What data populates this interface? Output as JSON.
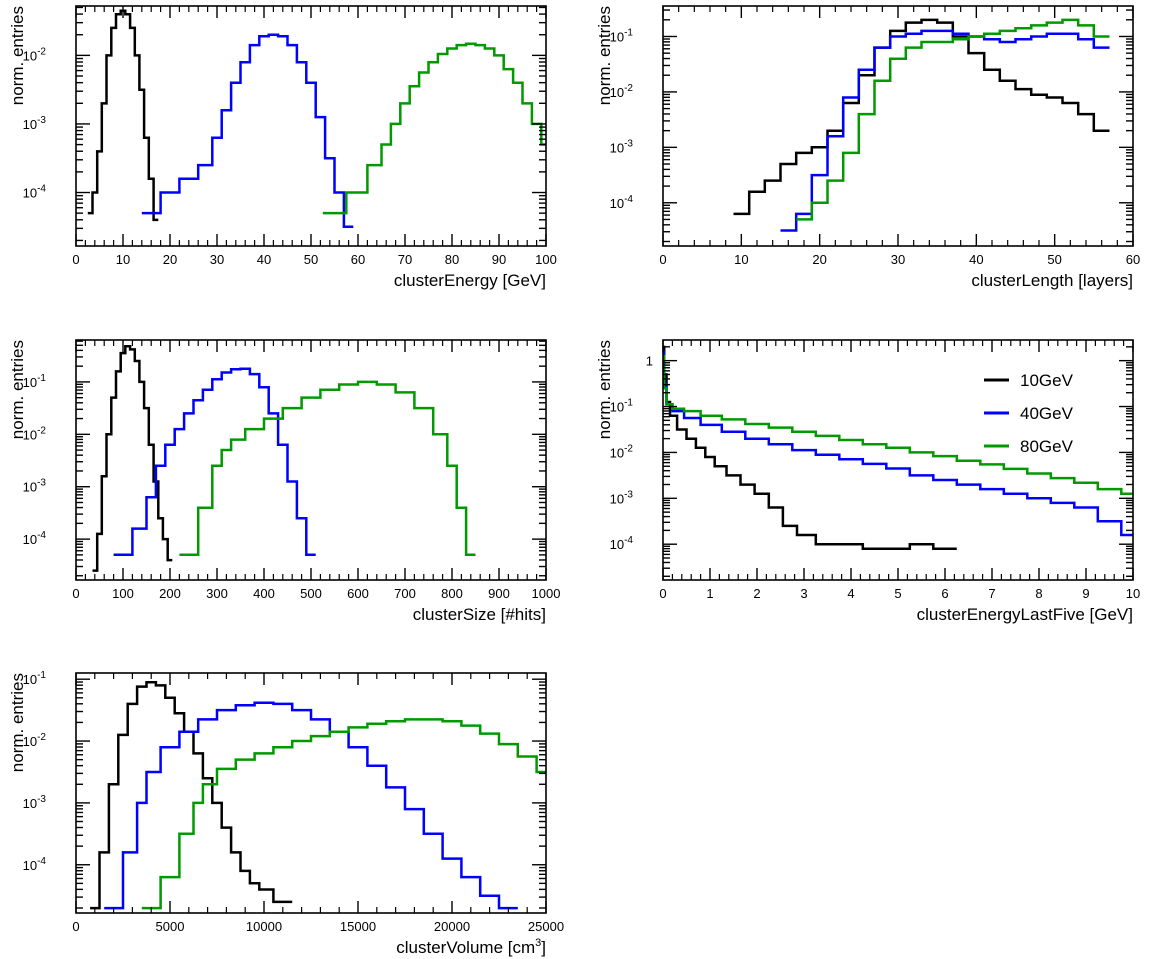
{
  "colors": {
    "10GeV": "#000000",
    "40GeV": "#0000ff",
    "80GeV": "#009900"
  },
  "chart_data": [
    {
      "id": "energy",
      "type": "line",
      "xlabel": "clusterEnergy [GeV]",
      "ylabel": "norm. entries",
      "xlim": [
        0,
        100
      ],
      "ylim_log10": [
        -4.78,
        -1.28
      ],
      "yscale": "log",
      "xticks": [
        "0",
        "10",
        "20",
        "30",
        "40",
        "50",
        "60",
        "70",
        "80",
        "90",
        "100"
      ],
      "yticks": [
        {
          "label": "10",
          "exp": "-4",
          "log": -4
        },
        {
          "label": "10",
          "exp": "-3",
          "log": -3
        },
        {
          "label": "10",
          "exp": "-2",
          "log": -2
        }
      ],
      "series": [
        {
          "key": "10GeV",
          "x": [
            3,
            4,
            5,
            6,
            7,
            8,
            9,
            10,
            11,
            12,
            13,
            14,
            15,
            16,
            17
          ],
          "log10y": [
            -4.3,
            -4.0,
            -3.4,
            -2.7,
            -2.0,
            -1.6,
            -1.4,
            -1.35,
            -1.4,
            -1.6,
            -2.0,
            -2.5,
            -3.2,
            -3.8,
            -4.4
          ]
        },
        {
          "key": "40GeV",
          "x": [
            16,
            20,
            24,
            28,
            30,
            32,
            34,
            36,
            38,
            40,
            42,
            44,
            46,
            48,
            50,
            52,
            54,
            56,
            58
          ],
          "log10y": [
            -4.3,
            -4.0,
            -3.8,
            -3.6,
            -3.2,
            -2.8,
            -2.4,
            -2.1,
            -1.85,
            -1.72,
            -1.7,
            -1.72,
            -1.85,
            -2.1,
            -2.4,
            -2.9,
            -3.5,
            -4.0,
            -4.5
          ]
        },
        {
          "key": "80GeV",
          "x": [
            55,
            60,
            64,
            66,
            68,
            70,
            72,
            74,
            76,
            78,
            80,
            82,
            84,
            86,
            88,
            90,
            92,
            94,
            96,
            98,
            100
          ],
          "log10y": [
            -4.3,
            -4.0,
            -3.6,
            -3.3,
            -3.0,
            -2.7,
            -2.45,
            -2.25,
            -2.1,
            -1.98,
            -1.9,
            -1.85,
            -1.83,
            -1.85,
            -1.9,
            -2.0,
            -2.2,
            -2.4,
            -2.7,
            -3.0,
            -3.3
          ]
        }
      ]
    },
    {
      "id": "length",
      "type": "line",
      "xlabel": "clusterLength [layers]",
      "ylabel": "norm. entries",
      "xlim": [
        0,
        60
      ],
      "ylim_log10": [
        -4.78,
        -0.45
      ],
      "yscale": "log",
      "xticks": [
        "0",
        "10",
        "20",
        "30",
        "40",
        "50",
        "60"
      ],
      "yticks": [
        {
          "label": "10",
          "exp": "-4",
          "log": -4
        },
        {
          "label": "10",
          "exp": "-3",
          "log": -3
        },
        {
          "label": "10",
          "exp": "-2",
          "log": -2
        },
        {
          "label": "10",
          "exp": "-1",
          "log": -1
        }
      ],
      "series": [
        {
          "key": "10GeV",
          "x": [
            10,
            12,
            14,
            16,
            18,
            20,
            22,
            24,
            26,
            28,
            30,
            32,
            34,
            36,
            38,
            40,
            42,
            44,
            46,
            48,
            50,
            52,
            54,
            56
          ],
          "log10y": [
            -4.2,
            -3.8,
            -3.6,
            -3.3,
            -3.1,
            -3.0,
            -2.7,
            -2.2,
            -1.7,
            -1.2,
            -0.9,
            -0.75,
            -0.7,
            -0.75,
            -1.0,
            -1.3,
            -1.6,
            -1.8,
            -1.95,
            -2.05,
            -2.1,
            -2.2,
            -2.4,
            -2.7
          ]
        },
        {
          "key": "40GeV",
          "x": [
            16,
            18,
            20,
            22,
            24,
            26,
            28,
            30,
            32,
            34,
            36,
            38,
            40,
            42,
            44,
            46,
            48,
            50,
            52,
            54,
            56
          ],
          "log10y": [
            -4.5,
            -4.2,
            -3.5,
            -2.8,
            -2.1,
            -1.6,
            -1.2,
            -1.0,
            -0.95,
            -0.9,
            -0.9,
            -0.95,
            -1.0,
            -1.05,
            -1.1,
            -1.05,
            -1.0,
            -0.95,
            -0.95,
            -1.05,
            -1.2
          ]
        },
        {
          "key": "80GeV",
          "x": [
            18,
            20,
            22,
            24,
            26,
            28,
            30,
            32,
            34,
            36,
            38,
            40,
            42,
            44,
            46,
            48,
            50,
            52,
            54,
            56
          ],
          "log10y": [
            -4.3,
            -4.0,
            -3.6,
            -3.1,
            -2.4,
            -1.8,
            -1.4,
            -1.2,
            -1.1,
            -1.1,
            -1.05,
            -1.0,
            -0.95,
            -0.9,
            -0.85,
            -0.8,
            -0.75,
            -0.7,
            -0.8,
            -1.0
          ]
        }
      ]
    },
    {
      "id": "size",
      "type": "line",
      "xlabel": "clusterSize [#hits]",
      "ylabel": "norm. entries",
      "xlim": [
        0,
        1000
      ],
      "ylim_log10": [
        -4.78,
        -0.2
      ],
      "yscale": "log",
      "xticks": [
        "0",
        "100",
        "200",
        "300",
        "400",
        "500",
        "600",
        "700",
        "800",
        "900",
        "1000"
      ],
      "yticks": [
        {
          "label": "10",
          "exp": "-4",
          "log": -4
        },
        {
          "label": "10",
          "exp": "-3",
          "log": -3
        },
        {
          "label": "10",
          "exp": "-2",
          "log": -2
        },
        {
          "label": "10",
          "exp": "-1",
          "log": -1
        }
      ],
      "series": [
        {
          "key": "10GeV",
          "x": [
            40,
            50,
            60,
            70,
            80,
            90,
            100,
            110,
            120,
            130,
            140,
            150,
            160,
            170,
            180,
            190,
            200
          ],
          "log10y": [
            -4.6,
            -3.9,
            -2.8,
            -2.0,
            -1.3,
            -0.8,
            -0.45,
            -0.32,
            -0.38,
            -0.6,
            -1.0,
            -1.5,
            -2.2,
            -2.9,
            -3.6,
            -4.0,
            -4.4
          ]
        },
        {
          "key": "40GeV",
          "x": [
            100,
            140,
            160,
            180,
            200,
            220,
            240,
            260,
            280,
            300,
            320,
            340,
            360,
            380,
            400,
            420,
            440,
            460,
            480,
            500
          ],
          "log10y": [
            -4.3,
            -3.8,
            -3.2,
            -2.6,
            -2.2,
            -1.9,
            -1.6,
            -1.35,
            -1.15,
            -0.95,
            -0.82,
            -0.76,
            -0.75,
            -0.85,
            -1.1,
            -1.6,
            -2.2,
            -2.9,
            -3.6,
            -4.3
          ]
        },
        {
          "key": "80GeV",
          "x": [
            240,
            280,
            300,
            320,
            340,
            380,
            420,
            460,
            500,
            540,
            580,
            620,
            660,
            700,
            740,
            780,
            800,
            820,
            840
          ],
          "log10y": [
            -4.3,
            -3.4,
            -2.6,
            -2.3,
            -2.1,
            -1.9,
            -1.7,
            -1.5,
            -1.3,
            -1.15,
            -1.05,
            -1.0,
            -1.05,
            -1.2,
            -1.5,
            -2.0,
            -2.6,
            -3.4,
            -4.3
          ]
        }
      ]
    },
    {
      "id": "lastfive",
      "type": "line",
      "xlabel": "clusterEnergyLastFive [GeV]",
      "ylabel": "norm. entries",
      "xlim": [
        0,
        10
      ],
      "ylim_log10": [
        -4.78,
        0.45
      ],
      "yscale": "log",
      "xticks": [
        "0",
        "1",
        "2",
        "3",
        "4",
        "5",
        "6",
        "7",
        "8",
        "9",
        "10"
      ],
      "yticks": [
        {
          "label": "10",
          "exp": "-4",
          "log": -4
        },
        {
          "label": "10",
          "exp": "-3",
          "log": -3
        },
        {
          "label": "10",
          "exp": "-2",
          "log": -2
        },
        {
          "label": "10",
          "exp": "-1",
          "log": -1
        },
        {
          "label": "1",
          "exp": "",
          "log": 0
        }
      ],
      "legend": {
        "position": "top-right",
        "entries": [
          "10GeV",
          "40GeV",
          "80GeV"
        ]
      },
      "series": [
        {
          "key": "10GeV",
          "x": [
            0.0,
            0.05,
            0.1,
            0.2,
            0.4,
            0.6,
            0.8,
            1.0,
            1.2,
            1.5,
            1.8,
            2.1,
            2.4,
            2.7,
            3.0,
            3.5,
            4.0,
            4.5,
            5.0,
            5.5,
            6.0
          ],
          "log10y": [
            0.3,
            -0.3,
            -0.9,
            -1.2,
            -1.5,
            -1.7,
            -1.9,
            -2.1,
            -2.3,
            -2.5,
            -2.7,
            -2.9,
            -3.2,
            -3.6,
            -3.8,
            -4.0,
            -4.0,
            -4.1,
            -4.1,
            -4.0,
            -4.1
          ]
        },
        {
          "key": "40GeV",
          "x": [
            0.0,
            0.05,
            0.1,
            0.3,
            0.6,
            1.0,
            1.5,
            2.0,
            2.5,
            3.0,
            3.5,
            4.0,
            4.5,
            5.0,
            5.5,
            6.0,
            6.5,
            7.0,
            7.5,
            8.0,
            8.5,
            9.0,
            9.5,
            10.0
          ],
          "log10y": [
            0.2,
            -0.5,
            -0.95,
            -1.1,
            -1.25,
            -1.4,
            -1.55,
            -1.7,
            -1.82,
            -1.95,
            -2.05,
            -2.15,
            -2.25,
            -2.35,
            -2.5,
            -2.6,
            -2.7,
            -2.8,
            -2.9,
            -3.0,
            -3.1,
            -3.2,
            -3.5,
            -3.8
          ]
        },
        {
          "key": "80GeV",
          "x": [
            0.0,
            0.05,
            0.1,
            0.3,
            0.6,
            1.0,
            1.5,
            2.0,
            2.5,
            3.0,
            3.5,
            4.0,
            4.5,
            5.0,
            5.5,
            6.0,
            6.5,
            7.0,
            7.5,
            8.0,
            8.5,
            9.0,
            9.5,
            10.0
          ],
          "log10y": [
            0.1,
            -0.6,
            -0.95,
            -1.05,
            -1.1,
            -1.2,
            -1.28,
            -1.38,
            -1.46,
            -1.55,
            -1.64,
            -1.73,
            -1.82,
            -1.9,
            -2.0,
            -2.08,
            -2.18,
            -2.26,
            -2.36,
            -2.46,
            -2.56,
            -2.66,
            -2.8,
            -2.9
          ]
        }
      ]
    },
    {
      "id": "volume",
      "type": "line",
      "xlabel": "clusterVolume [cm",
      "xlabel_sup": "3",
      "xlabel_end": "]",
      "ylabel": "norm. entries",
      "xlim": [
        0,
        25000
      ],
      "ylim_log10": [
        -4.78,
        -0.9
      ],
      "yscale": "log",
      "xticks": [
        "0",
        "5000",
        "10000",
        "15000",
        "20000",
        "25000"
      ],
      "yticks": [
        {
          "label": "10",
          "exp": "-4",
          "log": -4
        },
        {
          "label": "10",
          "exp": "-3",
          "log": -3
        },
        {
          "label": "10",
          "exp": "-2",
          "log": -2
        },
        {
          "label": "10",
          "exp": "-1",
          "log": -1
        }
      ],
      "series": [
        {
          "key": "10GeV",
          "x": [
            1000,
            1500,
            2000,
            2500,
            3000,
            3500,
            4000,
            4500,
            5000,
            5500,
            6000,
            6500,
            7000,
            7500,
            8000,
            8500,
            9000,
            9500,
            10000,
            11000
          ],
          "log10y": [
            -4.7,
            -3.8,
            -2.7,
            -1.9,
            -1.4,
            -1.12,
            -1.05,
            -1.1,
            -1.3,
            -1.55,
            -1.85,
            -2.2,
            -2.6,
            -3.0,
            -3.4,
            -3.8,
            -4.1,
            -4.3,
            -4.4,
            -4.6
          ]
        },
        {
          "key": "40GeV",
          "x": [
            2000,
            3000,
            3500,
            4000,
            5000,
            6000,
            7000,
            8000,
            9000,
            10000,
            11000,
            12000,
            13000,
            14000,
            15000,
            16000,
            17000,
            18000,
            19000,
            20000,
            21000,
            22000,
            23000
          ],
          "log10y": [
            -4.7,
            -3.8,
            -3.0,
            -2.5,
            -2.1,
            -1.85,
            -1.65,
            -1.5,
            -1.42,
            -1.38,
            -1.4,
            -1.5,
            -1.65,
            -1.85,
            -2.1,
            -2.4,
            -2.75,
            -3.1,
            -3.5,
            -3.9,
            -4.2,
            -4.5,
            -4.7
          ]
        },
        {
          "key": "80GeV",
          "x": [
            4000,
            5000,
            6000,
            6500,
            7000,
            8000,
            9000,
            10000,
            11000,
            12000,
            13000,
            14000,
            15000,
            16000,
            17000,
            18000,
            19000,
            20000,
            21000,
            22000,
            23000,
            24000,
            25000
          ],
          "log10y": [
            -4.7,
            -4.2,
            -3.5,
            -3.0,
            -2.7,
            -2.45,
            -2.3,
            -2.2,
            -2.1,
            -2.0,
            -1.92,
            -1.85,
            -1.78,
            -1.72,
            -1.68,
            -1.65,
            -1.65,
            -1.68,
            -1.75,
            -1.88,
            -2.05,
            -2.25,
            -2.5
          ]
        }
      ]
    }
  ]
}
